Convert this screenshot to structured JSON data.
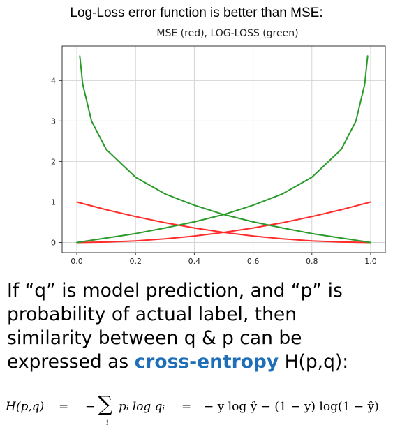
{
  "heading": "Log-Loss error function is better than MSE:",
  "chart_data": {
    "type": "line",
    "title": "MSE (red),  LOG-LOSS (green)",
    "xlim": [
      -0.05,
      1.05
    ],
    "ylim": [
      -0.25,
      4.85
    ],
    "x_ticks": [
      "0.0",
      "0.2",
      "0.4",
      "0.6",
      "0.8",
      "1.0"
    ],
    "y_ticks": [
      "0",
      "1",
      "2",
      "3",
      "4"
    ],
    "grid": true,
    "series": [
      {
        "color": "#ff2b2b",
        "x": [
          0.0,
          0.1,
          0.2,
          0.3,
          0.4,
          0.5,
          0.6,
          0.7,
          0.8,
          0.9,
          1.0
        ],
        "y": [
          1.0,
          0.81,
          0.64,
          0.49,
          0.36,
          0.25,
          0.16,
          0.09,
          0.04,
          0.01,
          0.0
        ]
      },
      {
        "color": "#ff2b2b",
        "x": [
          0.0,
          0.1,
          0.2,
          0.3,
          0.4,
          0.5,
          0.6,
          0.7,
          0.8,
          0.9,
          1.0
        ],
        "y": [
          0.0,
          0.01,
          0.04,
          0.09,
          0.16,
          0.25,
          0.36,
          0.49,
          0.64,
          0.81,
          1.0
        ]
      },
      {
        "color": "#2a9a2a",
        "x": [
          0.01,
          0.02,
          0.05,
          0.1,
          0.2,
          0.3,
          0.4,
          0.5,
          0.6,
          0.7,
          0.8,
          0.9,
          1.0
        ],
        "y": [
          4.61,
          3.91,
          3.0,
          2.3,
          1.61,
          1.2,
          0.92,
          0.69,
          0.51,
          0.36,
          0.22,
          0.11,
          0.0
        ]
      },
      {
        "color": "#2a9a2a",
        "x": [
          0.0,
          0.1,
          0.2,
          0.3,
          0.4,
          0.5,
          0.6,
          0.7,
          0.8,
          0.9,
          0.95,
          0.98,
          0.99
        ],
        "y": [
          0.0,
          0.11,
          0.22,
          0.36,
          0.51,
          0.69,
          0.92,
          1.2,
          1.61,
          2.3,
          3.0,
          3.91,
          4.61
        ]
      }
    ]
  },
  "text": {
    "line1": "If “q” is model prediction, and “p” is",
    "line2": "probability of actual label, then",
    "line3": "similarity between q & p can be",
    "line4_pre": "expressed as ",
    "line4_highlight": "cross-entropy",
    "line4_post": " H(p,q):"
  },
  "formula": {
    "lhs": "H(p,q)",
    "eq": "=",
    "neg": "−",
    "sum_symbol": "∑",
    "sum_index": "i",
    "sum_body": "pᵢ log qᵢ",
    "rhs": "− y log ŷ − (1 − y) log(1 − ŷ)"
  }
}
